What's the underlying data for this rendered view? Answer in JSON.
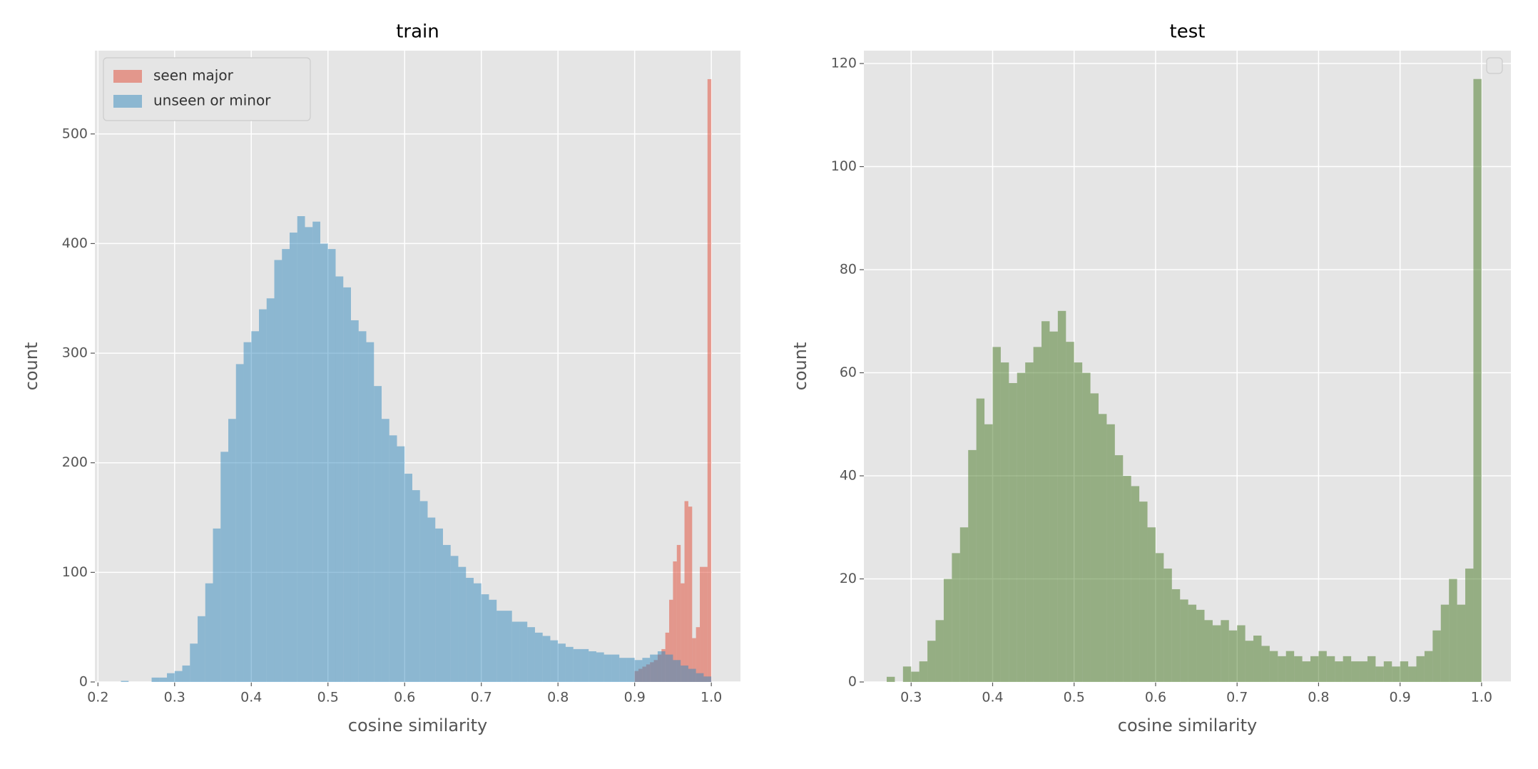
{
  "chart_data": [
    {
      "type": "histogram",
      "title": "train",
      "xlabel": "cosine similarity",
      "ylabel": "count",
      "xlim": [
        0.196,
        1.038
      ],
      "ylim": [
        0,
        576
      ],
      "xticks": [
        0.2,
        0.3,
        0.4,
        0.5,
        0.6,
        0.7,
        0.8,
        0.9,
        {
          "value": 1,
          "label": "1.0"
        }
      ],
      "yticks": [
        0,
        100,
        200,
        300,
        400,
        500
      ],
      "grid": true,
      "legend": "upper left",
      "series": [
        {
          "name": "seen major",
          "color": "#E24A33",
          "bins": [
            0.9,
            0.905,
            0.91,
            0.915,
            0.92,
            0.925,
            0.93,
            0.935,
            0.94,
            0.945,
            0.95,
            0.955,
            0.96,
            0.965,
            0.97,
            0.975,
            0.98,
            0.985,
            0.99,
            0.995,
            1
          ],
          "values": [
            10,
            12,
            14,
            16,
            18,
            20,
            25,
            30,
            45,
            75,
            110,
            125,
            90,
            165,
            160,
            40,
            50,
            105,
            105,
            550
          ]
        },
        {
          "name": "unseen or minor",
          "color": "#348ABD",
          "bins": [
            0.23,
            0.24,
            0.25,
            0.26,
            0.27,
            0.28,
            0.29,
            0.3,
            0.31,
            0.32,
            0.33,
            0.34,
            0.35,
            0.36,
            0.37,
            0.38,
            0.39,
            0.4,
            0.41,
            0.42,
            0.43,
            0.44,
            0.45,
            0.46,
            0.47,
            0.48,
            0.49,
            0.5,
            0.51,
            0.52,
            0.53,
            0.54,
            0.55,
            0.56,
            0.57,
            0.58,
            0.59,
            0.6,
            0.61,
            0.62,
            0.63,
            0.64,
            0.65,
            0.66,
            0.67,
            0.68,
            0.69,
            0.7,
            0.71,
            0.72,
            0.73,
            0.74,
            0.75,
            0.76,
            0.77,
            0.78,
            0.79,
            0.8,
            0.81,
            0.82,
            0.83,
            0.84,
            0.85,
            0.86,
            0.87,
            0.88,
            0.89,
            0.9,
            0.91,
            0.92,
            0.93,
            0.94,
            0.95,
            0.96,
            0.97,
            0.98,
            0.99,
            1
          ],
          "values": [
            1,
            0,
            0,
            0,
            4,
            4,
            8,
            10,
            15,
            35,
            60,
            90,
            140,
            210,
            240,
            290,
            310,
            320,
            340,
            350,
            385,
            395,
            410,
            425,
            415,
            420,
            400,
            395,
            370,
            360,
            330,
            320,
            310,
            270,
            240,
            225,
            215,
            190,
            175,
            165,
            150,
            140,
            125,
            115,
            105,
            95,
            90,
            80,
            75,
            65,
            65,
            55,
            55,
            50,
            45,
            42,
            38,
            35,
            32,
            30,
            30,
            28,
            27,
            25,
            25,
            22,
            22,
            20,
            22,
            25,
            28,
            25,
            20,
            15,
            12,
            8,
            5
          ]
        }
      ]
    },
    {
      "type": "histogram",
      "title": "test",
      "xlabel": "cosine similarity",
      "ylabel": "count",
      "xlim": [
        0.242,
        1.036
      ],
      "ylim": [
        0,
        122.5
      ],
      "xticks": [
        0.3,
        0.4,
        0.5,
        0.6,
        0.7,
        0.8,
        0.9,
        {
          "value": 1,
          "label": "1.0"
        }
      ],
      "yticks": [
        0,
        20,
        40,
        60,
        80,
        100,
        120
      ],
      "grid": true,
      "legend": "upper right",
      "series": [
        {
          "color": "#467821",
          "bins": [
            0.27,
            0.28,
            0.29,
            0.3,
            0.31,
            0.32,
            0.33,
            0.34,
            0.35,
            0.36,
            0.37,
            0.38,
            0.39,
            0.4,
            0.41,
            0.42,
            0.43,
            0.44,
            0.45,
            0.46,
            0.47,
            0.48,
            0.49,
            0.5,
            0.51,
            0.52,
            0.53,
            0.54,
            0.55,
            0.56,
            0.57,
            0.58,
            0.59,
            0.6,
            0.61,
            0.62,
            0.63,
            0.64,
            0.65,
            0.66,
            0.67,
            0.68,
            0.69,
            0.7,
            0.71,
            0.72,
            0.73,
            0.74,
            0.75,
            0.76,
            0.77,
            0.78,
            0.79,
            0.8,
            0.81,
            0.82,
            0.83,
            0.84,
            0.85,
            0.86,
            0.87,
            0.88,
            0.89,
            0.9,
            0.91,
            0.92,
            0.93,
            0.94,
            0.95,
            0.96,
            0.97,
            0.98,
            0.99,
            1
          ],
          "values": [
            1,
            0,
            3,
            2,
            4,
            8,
            12,
            20,
            25,
            30,
            45,
            55,
            50,
            65,
            62,
            58,
            60,
            62,
            65,
            70,
            68,
            72,
            66,
            62,
            60,
            56,
            52,
            50,
            44,
            40,
            38,
            35,
            30,
            25,
            22,
            18,
            16,
            15,
            14,
            12,
            11,
            12,
            10,
            11,
            8,
            9,
            7,
            6,
            5,
            6,
            5,
            4,
            5,
            6,
            5,
            4,
            5,
            4,
            4,
            5,
            3,
            4,
            3,
            4,
            3,
            5,
            6,
            10,
            15,
            20,
            15,
            22,
            117
          ]
        }
      ]
    }
  ]
}
